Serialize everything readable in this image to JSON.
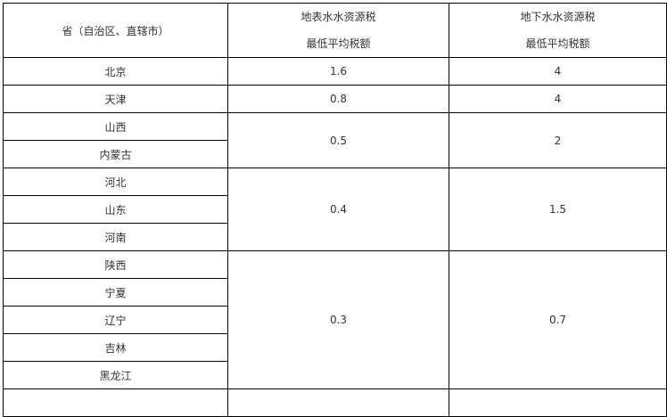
{
  "header": {
    "province": "省（自治区、直辖市）",
    "surface_line1": "地表水水资源税",
    "surface_line2": "最低平均税额",
    "ground_line1": "地下水水资源税",
    "ground_line2": "最低平均税额"
  },
  "groups": [
    {
      "provinces": [
        "北京"
      ],
      "surface": "1.6",
      "ground": "4"
    },
    {
      "provinces": [
        "天津"
      ],
      "surface": "0.8",
      "ground": "4"
    },
    {
      "provinces": [
        "山西",
        "内蒙古"
      ],
      "surface": "0.5",
      "ground": "2"
    },
    {
      "provinces": [
        "河北",
        "山东",
        "河南"
      ],
      "surface": "0.4",
      "ground": "1.5"
    },
    {
      "provinces": [
        "陕西",
        "宁夏",
        "辽宁",
        "吉林",
        "黑龙江"
      ],
      "surface": "0.3",
      "ground": "0.7"
    }
  ]
}
